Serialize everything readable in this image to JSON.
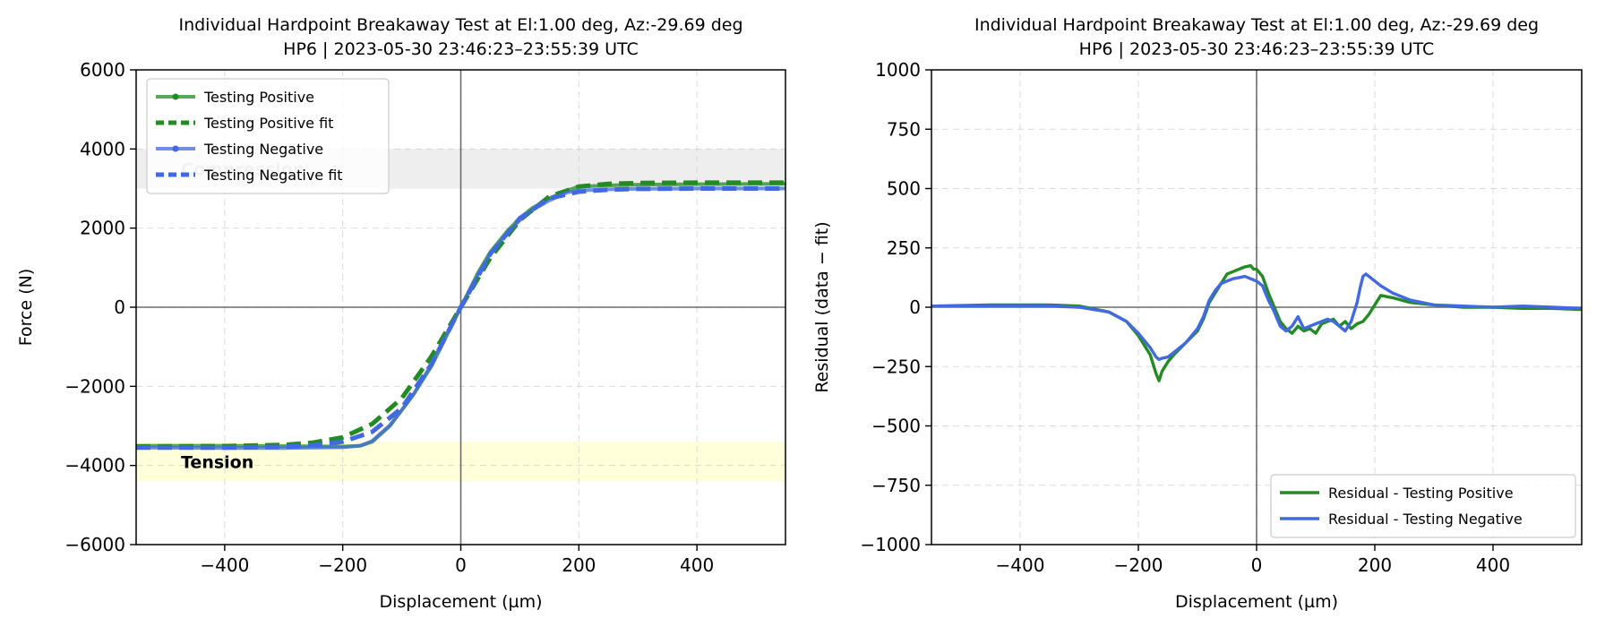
{
  "chart_data": [
    {
      "type": "line",
      "title": "Individual Hardpoint Breakaway Test at El:1.00 deg, Az:-29.69 deg",
      "subtitle": "HP6 | 2023-05-30 23:46:23–23:55:39 UTC",
      "xlabel": "Displacement (µm)",
      "ylabel": "Force (N)",
      "xlim": [
        -550,
        550
      ],
      "ylim": [
        -6000,
        6000
      ],
      "xticks": [
        -400,
        -200,
        0,
        200,
        400
      ],
      "yticks": [
        -6000,
        -4000,
        -2000,
        0,
        2000,
        4000,
        6000
      ],
      "xtick_labels": [
        "−400",
        "−200",
        "0",
        "200",
        "400"
      ],
      "ytick_labels": [
        "−6000",
        "−4000",
        "−2000",
        "0",
        "2000",
        "4000",
        "6000"
      ],
      "grid": true,
      "legend_position": "upper-left",
      "bands": [
        {
          "label": "Compression",
          "y0": 3000,
          "y1": 4000,
          "color": "#e8e8e8"
        },
        {
          "label": "Tension",
          "y0": -4400,
          "y1": -3400,
          "color": "#ffffcc"
        }
      ],
      "series": [
        {
          "name": "Testing Positive",
          "color": "#228b22",
          "style": "solid-markers",
          "x": [
            -550,
            -400,
            -300,
            -200,
            -170,
            -150,
            -120,
            -100,
            -80,
            -50,
            -30,
            0,
            30,
            50,
            80,
            100,
            120,
            150,
            180,
            200,
            250,
            300,
            400,
            550
          ],
          "y": [
            -3500,
            -3500,
            -3510,
            -3520,
            -3500,
            -3400,
            -3000,
            -2600,
            -2200,
            -1500,
            -900,
            0,
            900,
            1400,
            1950,
            2250,
            2500,
            2750,
            2950,
            3050,
            3080,
            3100,
            3110,
            3120
          ]
        },
        {
          "name": "Testing Positive fit",
          "color": "#228b22",
          "style": "dashed",
          "x": [
            -550,
            -400,
            -300,
            -250,
            -200,
            -150,
            -100,
            -50,
            0,
            50,
            100,
            150,
            200,
            250,
            300,
            400,
            550
          ],
          "y": [
            -3520,
            -3510,
            -3480,
            -3420,
            -3290,
            -2950,
            -2300,
            -1250,
            0,
            1250,
            2200,
            2800,
            3050,
            3120,
            3140,
            3150,
            3150
          ]
        },
        {
          "name": "Testing Negative",
          "color": "#4169e1",
          "style": "solid-markers",
          "x": [
            -550,
            -400,
            -300,
            -200,
            -170,
            -150,
            -120,
            -100,
            -80,
            -50,
            -30,
            0,
            30,
            50,
            80,
            100,
            120,
            150,
            180,
            200,
            250,
            300,
            400,
            550
          ],
          "y": [
            -3550,
            -3560,
            -3560,
            -3540,
            -3500,
            -3380,
            -2980,
            -2600,
            -2200,
            -1450,
            -850,
            0,
            850,
            1350,
            1900,
            2200,
            2450,
            2700,
            2900,
            2950,
            2980,
            2990,
            3000,
            3000
          ]
        },
        {
          "name": "Testing Negative fit",
          "color": "#4169e1",
          "style": "dashed",
          "x": [
            -550,
            -400,
            -300,
            -250,
            -200,
            -150,
            -100,
            -50,
            0,
            50,
            100,
            150,
            200,
            250,
            300,
            400,
            550
          ],
          "y": [
            -3550,
            -3550,
            -3530,
            -3490,
            -3400,
            -3150,
            -2550,
            -1450,
            0,
            1350,
            2250,
            2750,
            2920,
            2970,
            2990,
            3000,
            3000
          ]
        }
      ]
    },
    {
      "type": "line",
      "title": "Individual Hardpoint Breakaway Test at El:1.00 deg, Az:-29.69 deg",
      "subtitle": "HP6 | 2023-05-30 23:46:23–23:55:39 UTC",
      "xlabel": "Displacement (µm)",
      "ylabel": "Residual (data − fit)",
      "xlim": [
        -550,
        550
      ],
      "ylim": [
        -1000,
        1000
      ],
      "xticks": [
        -400,
        -200,
        0,
        200,
        400
      ],
      "yticks": [
        -1000,
        -750,
        -500,
        -250,
        0,
        250,
        500,
        750,
        1000
      ],
      "xtick_labels": [
        "−400",
        "−200",
        "0",
        "200",
        "400"
      ],
      "ytick_labels": [
        "−1000",
        "−750",
        "−500",
        "−250",
        "0",
        "250",
        "500",
        "750",
        "1000"
      ],
      "grid": true,
      "legend_position": "lower-right",
      "series": [
        {
          "name": "Residual - Testing Positive",
          "color": "#228b22",
          "x": [
            -550,
            -450,
            -350,
            -300,
            -250,
            -220,
            -200,
            -180,
            -170,
            -165,
            -160,
            -150,
            -140,
            -120,
            -100,
            -90,
            -80,
            -70,
            -60,
            -50,
            -40,
            -30,
            -20,
            -10,
            -5,
            0,
            10,
            20,
            30,
            40,
            50,
            60,
            70,
            80,
            90,
            100,
            110,
            120,
            130,
            140,
            150,
            160,
            170,
            180,
            190,
            200,
            210,
            230,
            260,
            300,
            350,
            400,
            450,
            500,
            550
          ],
          "y": [
            5,
            10,
            10,
            5,
            -20,
            -60,
            -120,
            -200,
            -280,
            -310,
            -270,
            -230,
            -200,
            -150,
            -100,
            -50,
            20,
            60,
            100,
            140,
            150,
            160,
            170,
            175,
            160,
            160,
            130,
            60,
            0,
            -60,
            -90,
            -110,
            -80,
            -100,
            -90,
            -110,
            -70,
            -60,
            -50,
            -80,
            -60,
            -90,
            -70,
            -60,
            -30,
            10,
            50,
            40,
            20,
            10,
            0,
            0,
            -5,
            -5,
            -10
          ]
        },
        {
          "name": "Residual - Testing Negative",
          "color": "#4169e1",
          "x": [
            -550,
            -450,
            -350,
            -300,
            -250,
            -220,
            -200,
            -180,
            -170,
            -165,
            -160,
            -150,
            -140,
            -120,
            -100,
            -90,
            -80,
            -70,
            -60,
            -50,
            -40,
            -30,
            -20,
            -10,
            0,
            10,
            20,
            30,
            40,
            50,
            60,
            70,
            80,
            90,
            100,
            110,
            120,
            130,
            140,
            150,
            160,
            170,
            175,
            180,
            185,
            190,
            200,
            210,
            230,
            260,
            300,
            350,
            400,
            450,
            500,
            550
          ],
          "y": [
            5,
            5,
            5,
            0,
            -20,
            -60,
            -110,
            -170,
            -210,
            -220,
            -215,
            -210,
            -190,
            -150,
            -90,
            -40,
            30,
            70,
            100,
            110,
            120,
            125,
            130,
            120,
            110,
            90,
            30,
            -20,
            -80,
            -100,
            -80,
            -40,
            -90,
            -80,
            -70,
            -60,
            -50,
            -60,
            -80,
            -100,
            -60,
            20,
            80,
            130,
            140,
            130,
            110,
            90,
            60,
            30,
            10,
            5,
            0,
            5,
            0,
            -5
          ]
        }
      ]
    }
  ]
}
